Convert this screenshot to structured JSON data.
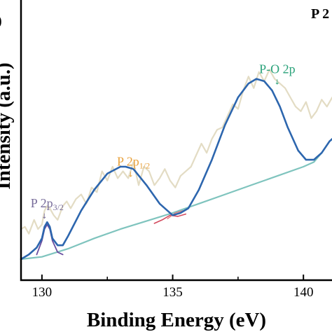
{
  "chart_data": {
    "type": "line",
    "title": "",
    "panel_label": "P 2",
    "panel_label_left": ")",
    "xlabel": "Binding Energy (eV)",
    "ylabel": "Intensity (a.u.)",
    "xlim": [
      129.2,
      141.2
    ],
    "ylim": [
      0,
      100
    ],
    "x_ticks": [
      130,
      135,
      140
    ],
    "x_tick_labels": [
      "130",
      "135",
      "140"
    ],
    "grid": false,
    "colors": {
      "raw": "#e3dcc4",
      "fit": "#2d66ae",
      "background": "#7fc4be",
      "peak_p32": "#6a4ea0",
      "peak_p12": "#d24a5e",
      "peak_po": "#e07b7b",
      "label_p32": "#776c9a",
      "label_p12": "#e8a23d",
      "label_po": "#2aa27a"
    },
    "annotations": [
      {
        "key": "p32",
        "main": "P 2p",
        "sub": "3/2",
        "x": 130.2,
        "y": 22.5
      },
      {
        "key": "p12",
        "main": "P 2p",
        "sub": "1/2",
        "x": 133.5,
        "y": 40.5
      },
      {
        "key": "po",
        "main": "P-O 2p",
        "sub": "",
        "x": 139.0,
        "y": 80.5
      }
    ],
    "series": [
      {
        "key": "raw",
        "x": [
          129.2,
          129.35,
          129.5,
          129.7,
          129.85,
          130.0,
          130.1,
          130.2,
          130.3,
          130.45,
          130.6,
          130.8,
          130.95,
          131.1,
          131.3,
          131.5,
          131.7,
          131.9,
          132.1,
          132.3,
          132.5,
          132.7,
          132.9,
          133.1,
          133.3,
          133.5,
          133.7,
          133.9,
          134.1,
          134.3,
          134.5,
          134.7,
          134.9,
          135.1,
          135.3,
          135.5,
          135.7,
          135.9,
          136.1,
          136.3,
          136.5,
          136.7,
          136.9,
          137.1,
          137.3,
          137.5,
          137.7,
          137.9,
          138.1,
          138.3,
          138.5,
          138.7,
          138.9,
          139.1,
          139.3,
          139.5,
          139.7,
          139.9,
          140.1,
          140.3,
          140.5,
          140.7,
          140.9,
          141.1
        ],
        "y": [
          13,
          14,
          11,
          17,
          13,
          15,
          21,
          23,
          22,
          19,
          17,
          23,
          25,
          22,
          26,
          28,
          24,
          31,
          29,
          38,
          34,
          40,
          35,
          38,
          35,
          42,
          32,
          40,
          38,
          32,
          35,
          39,
          34,
          31,
          36,
          38,
          40,
          45,
          50,
          46,
          52,
          56,
          57,
          62,
          67,
          65,
          73,
          79,
          74,
          81,
          77,
          82,
          78,
          76,
          74,
          70,
          66,
          64,
          68,
          61,
          64,
          69,
          66,
          70
        ]
      },
      {
        "key": "fit",
        "x": [
          129.2,
          129.5,
          129.8,
          130.0,
          130.1,
          130.2,
          130.3,
          130.4,
          130.6,
          130.8,
          131.0,
          131.5,
          132.0,
          132.5,
          133.0,
          133.2,
          133.5,
          134.0,
          134.5,
          135.0,
          135.3,
          135.6,
          136.0,
          136.5,
          137.0,
          137.5,
          137.9,
          138.2,
          138.5,
          138.8,
          139.1,
          139.4,
          139.8,
          140.1,
          140.4,
          140.7,
          141.0,
          141.2
        ],
        "y": [
          0,
          2,
          5,
          9,
          14,
          16,
          14,
          9,
          6,
          6,
          10,
          21,
          30,
          37,
          40,
          40,
          39,
          32,
          24,
          19,
          20,
          22,
          30,
          43,
          58,
          70,
          76,
          78,
          77,
          73,
          66,
          57,
          47,
          43,
          43,
          46,
          51,
          53
        ]
      },
      {
        "key": "background",
        "x": [
          129.2,
          130.0,
          131.0,
          132.0,
          133.0,
          134.0,
          135.0,
          135.5,
          136.0,
          137.0,
          138.0,
          139.0,
          140.0,
          140.4,
          140.7,
          141.0,
          141.2
        ],
        "y": [
          0,
          1,
          4.5,
          9,
          13,
          16.5,
          20,
          22,
          24,
          28,
          32,
          36,
          40,
          42,
          46,
          51,
          53
        ]
      },
      {
        "key": "peak_p32",
        "x": [
          129.8,
          130.0,
          130.1,
          130.2,
          130.3,
          130.4,
          130.6,
          130.8
        ],
        "y": [
          2,
          8,
          13,
          15,
          13,
          8,
          3,
          2
        ]
      },
      {
        "key": "peak_p12",
        "x": [
          134.3,
          134.6,
          134.9,
          135.2,
          135.5
        ],
        "y": [
          15.5,
          17,
          19,
          18.5,
          19.5
        ]
      },
      {
        "key": "peak_po",
        "x": [
          134.8,
          135.1,
          135.4
        ],
        "y": [
          17.5,
          20,
          21
        ]
      }
    ]
  }
}
